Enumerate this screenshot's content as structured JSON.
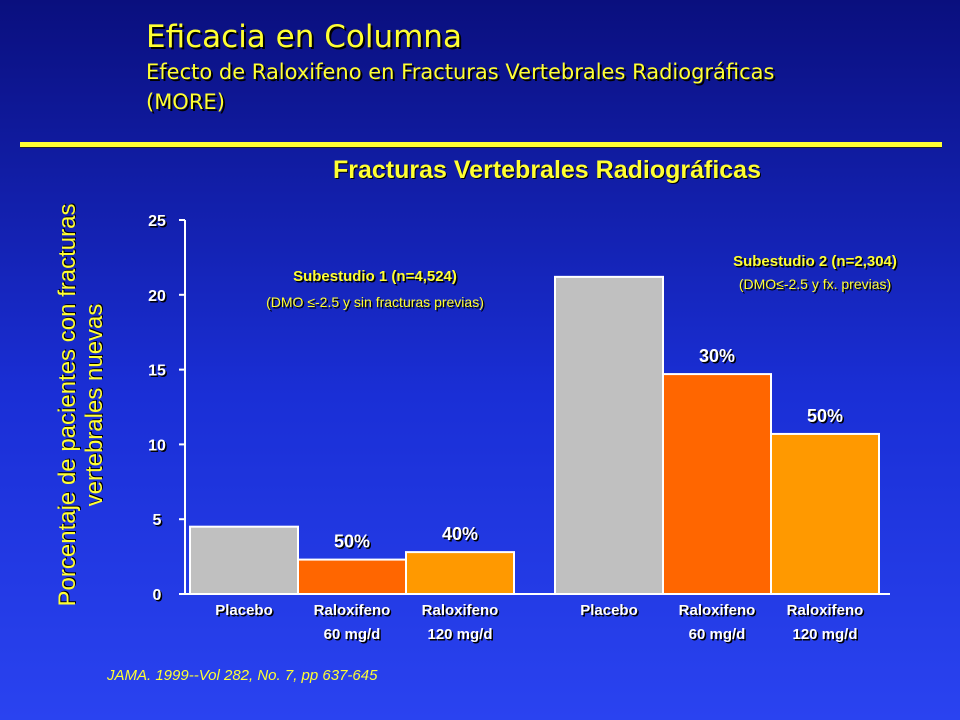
{
  "slide": {
    "title": "Eficacia en Columna",
    "subtitle_line1": "Efecto de Raloxifeno en Fracturas Vertebrales Radiográficas",
    "subtitle_line2": "(MORE)",
    "citation": "JAMA. 1999--Vol 282, No. 7, pp 637-645"
  },
  "colors": {
    "placebo": "#c0c0c0",
    "ralox60": "#ff6600",
    "ralox120": "#ff9900",
    "text": "#ffff33",
    "axis": "#ffffff"
  },
  "chart_data": {
    "type": "bar",
    "title": "Fracturas Vertebrales Radiográficas",
    "ylabel": "Porcentaje de pacientes con fracturas vertebrales nuevas",
    "ylim": [
      0,
      25
    ],
    "yticks": [
      0,
      5,
      10,
      15,
      20,
      25
    ],
    "groups": [
      {
        "name": "Subestudio 1 (n=4,524)",
        "note": "(DMO ≤-2.5 y sin fracturas previas)",
        "bars": [
          {
            "label": [
              "Placebo"
            ],
            "value": 4.5,
            "reduction": "",
            "color": "placebo"
          },
          {
            "label": [
              "Raloxifeno",
              "60 mg/d"
            ],
            "value": 2.3,
            "reduction": "50%",
            "color": "ralox60"
          },
          {
            "label": [
              "Raloxifeno",
              "120 mg/d"
            ],
            "value": 2.8,
            "reduction": "40%",
            "color": "ralox120"
          }
        ]
      },
      {
        "name": "Subestudio 2 (n=2,304)",
        "note": "(DMO≤-2.5 y fx. previas)",
        "bars": [
          {
            "label": [
              "Placebo"
            ],
            "value": 21.2,
            "reduction": "",
            "color": "placebo"
          },
          {
            "label": [
              "Raloxifeno",
              "60 mg/d"
            ],
            "value": 14.7,
            "reduction": "30%",
            "color": "ralox60"
          },
          {
            "label": [
              "Raloxifeno",
              "120 mg/d"
            ],
            "value": 10.7,
            "reduction": "50%",
            "color": "ralox120"
          }
        ]
      }
    ]
  }
}
